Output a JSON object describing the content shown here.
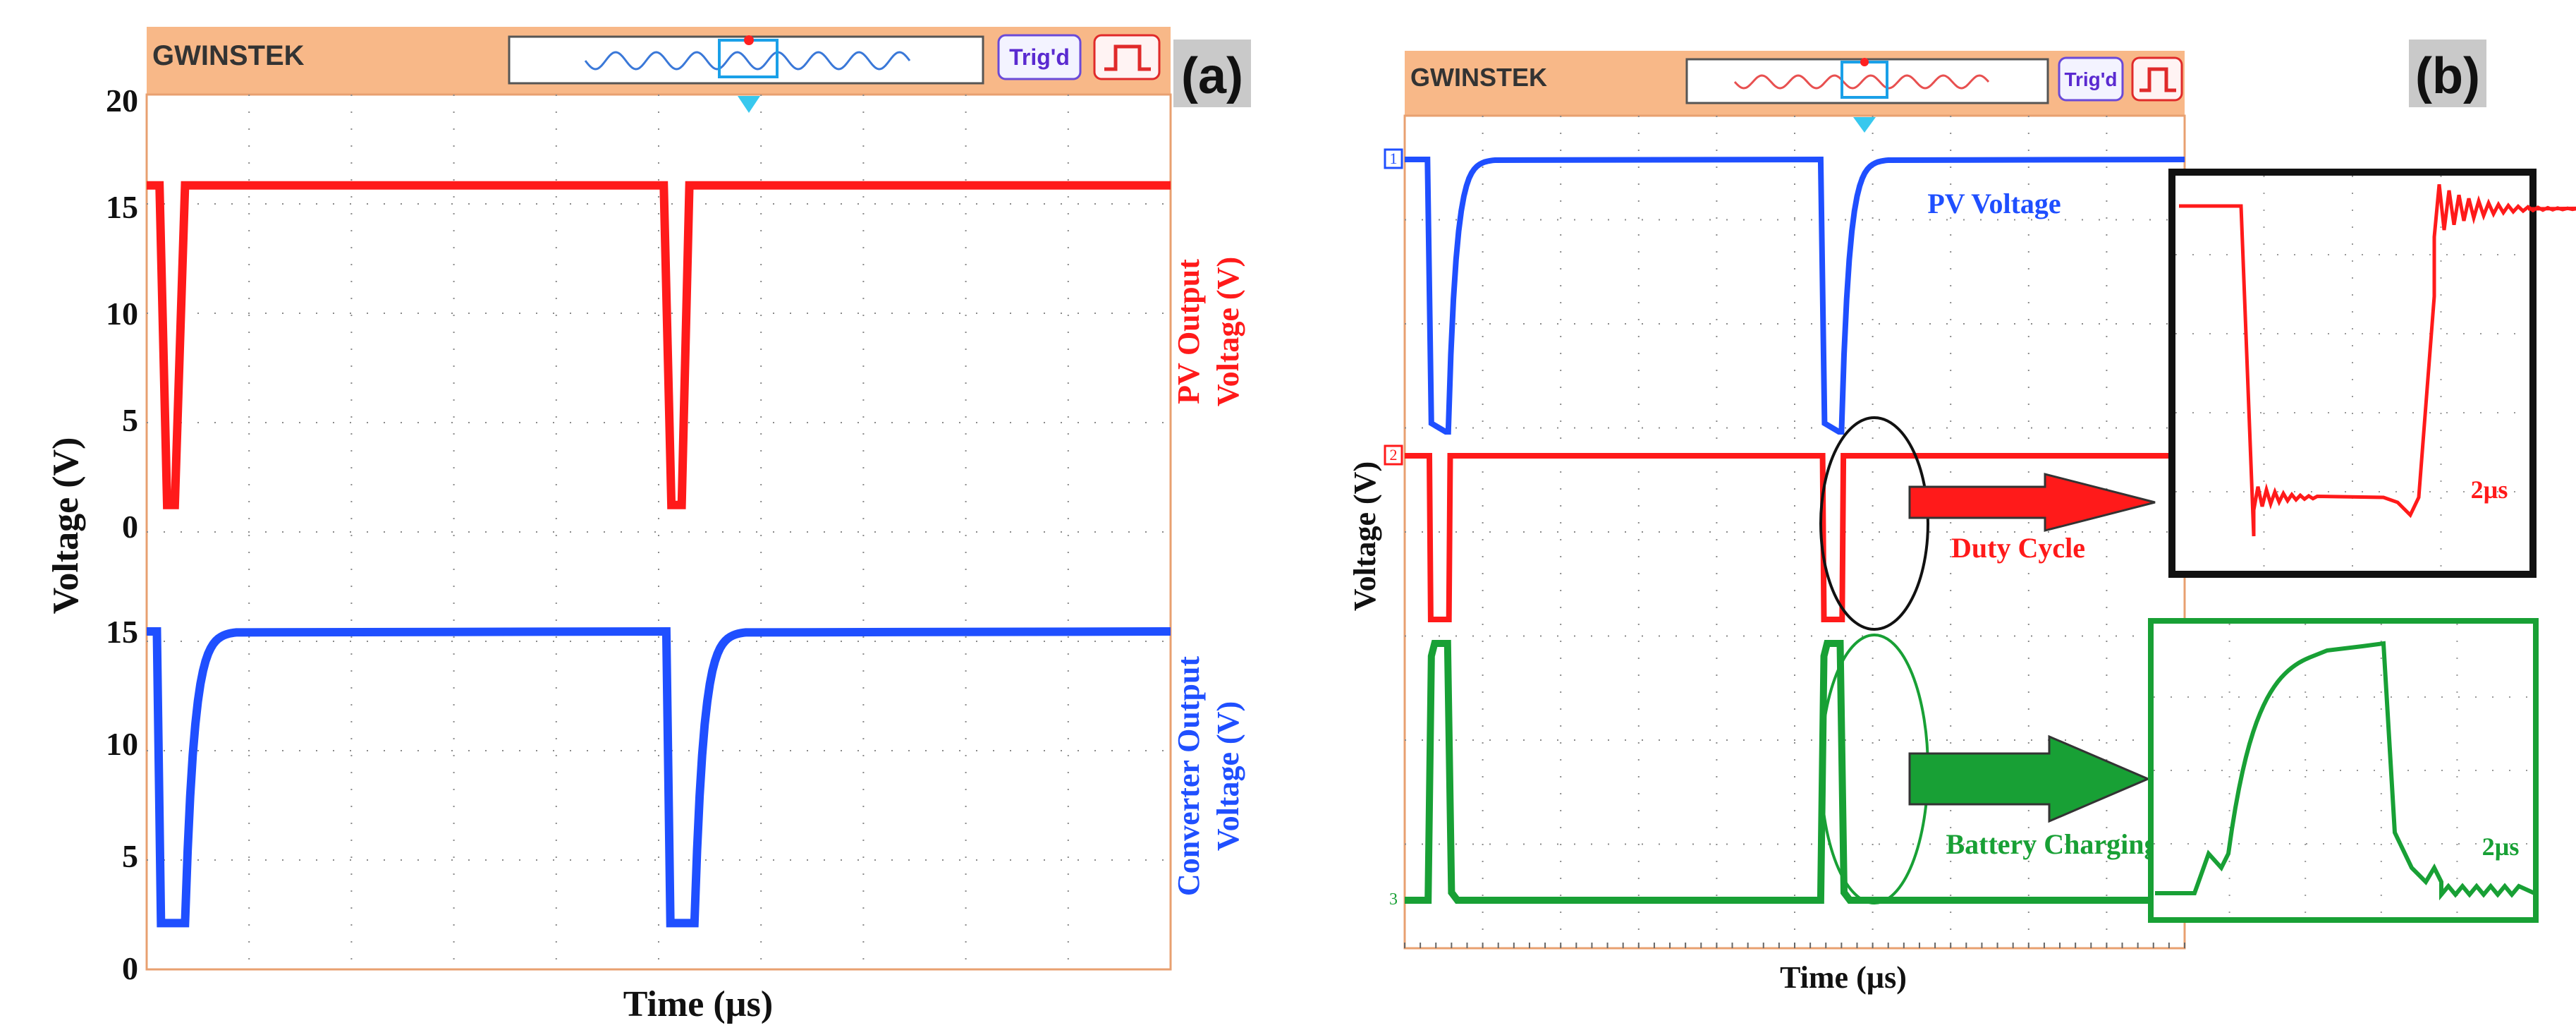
{
  "panel_a": {
    "label": "(a)",
    "brand": "GWINSTEK",
    "trig_label": "Trig'd",
    "ylabel": "Voltage (V)",
    "xlabel": "Time (µs)",
    "upper_ticks": [
      "20",
      "15",
      "10",
      "5",
      "0"
    ],
    "lower_ticks": [
      "15",
      "10",
      "5",
      "0"
    ],
    "pv_label_line1": "PV Output",
    "pv_label_line2": "Voltage (V)",
    "conv_label_line1": "Converter Output",
    "conv_label_line2": "Voltage (V)"
  },
  "panel_b": {
    "label": "(b)",
    "brand": "GWINSTEK",
    "trig_label": "Trig'd",
    "ylabel": "Voltage (V)",
    "xlabel": "Time (µs)",
    "ch1_marker": "1",
    "ch2_marker": "2",
    "ch3_marker": "3",
    "pv_voltage_label": "PV Voltage",
    "duty_cycle_label": "Duty Cycle",
    "battery_label": "Battery Charging",
    "zoom_red_label": "2µs",
    "zoom_green_label": "2µs"
  },
  "colors": {
    "red": "#ff1a1a",
    "blue": "#1f4fff",
    "green": "#18a035",
    "header": "#f8b888",
    "grid": "#8a8a8a"
  },
  "chart_data": [
    {
      "type": "line",
      "panel": "(a)",
      "xlabel": "Time (µs)",
      "ylabel": "Voltage (V)",
      "ylim": [
        0,
        20
      ],
      "series": [
        {
          "name": "PV Output Voltage (V)",
          "x": [
            0,
            0.25,
            0.4,
            0.55,
            0.75,
            9.9,
            10.1,
            10.25,
            10.45,
            10.6,
            20
          ],
          "values": [
            16,
            16,
            1,
            1,
            16,
            16,
            16,
            1,
            1,
            16,
            16
          ]
        },
        {
          "name": "Converter Output Voltage (V)",
          "x": [
            0,
            0.2,
            0.45,
            0.7,
            0.9,
            1.4,
            9.9,
            10.15,
            10.4,
            10.65,
            10.85,
            11.4,
            20
          ],
          "values": [
            15,
            15,
            2,
            2,
            12,
            15,
            15,
            15,
            2,
            2,
            12,
            15,
            15
          ]
        }
      ]
    },
    {
      "type": "line",
      "panel": "(b)",
      "xlabel": "Time (µs)",
      "ylabel": "Voltage (V)",
      "series": [
        {
          "name": "PV Voltage",
          "x": [
            0,
            0.4,
            0.55,
            0.7,
            0.85,
            1.0,
            1.3,
            6.4,
            6.55,
            6.75,
            6.9,
            7.05,
            7.4,
            12
          ],
          "values": [
            1,
            1,
            0.2,
            0.2,
            0.1,
            0.8,
            1,
            1,
            0.3,
            0.2,
            0.2,
            0.8,
            1,
            1
          ]
        },
        {
          "name": "Duty Cycle",
          "x": [
            0,
            0.45,
            0.5,
            0.85,
            0.9,
            12
          ],
          "values": [
            1,
            1,
            0,
            0,
            1,
            1
          ]
        },
        {
          "name": "Battery Charging",
          "x": [
            0,
            0.4,
            0.5,
            0.8,
            0.95,
            12
          ],
          "values": [
            0,
            0,
            1,
            1,
            0,
            0
          ]
        }
      ]
    }
  ]
}
